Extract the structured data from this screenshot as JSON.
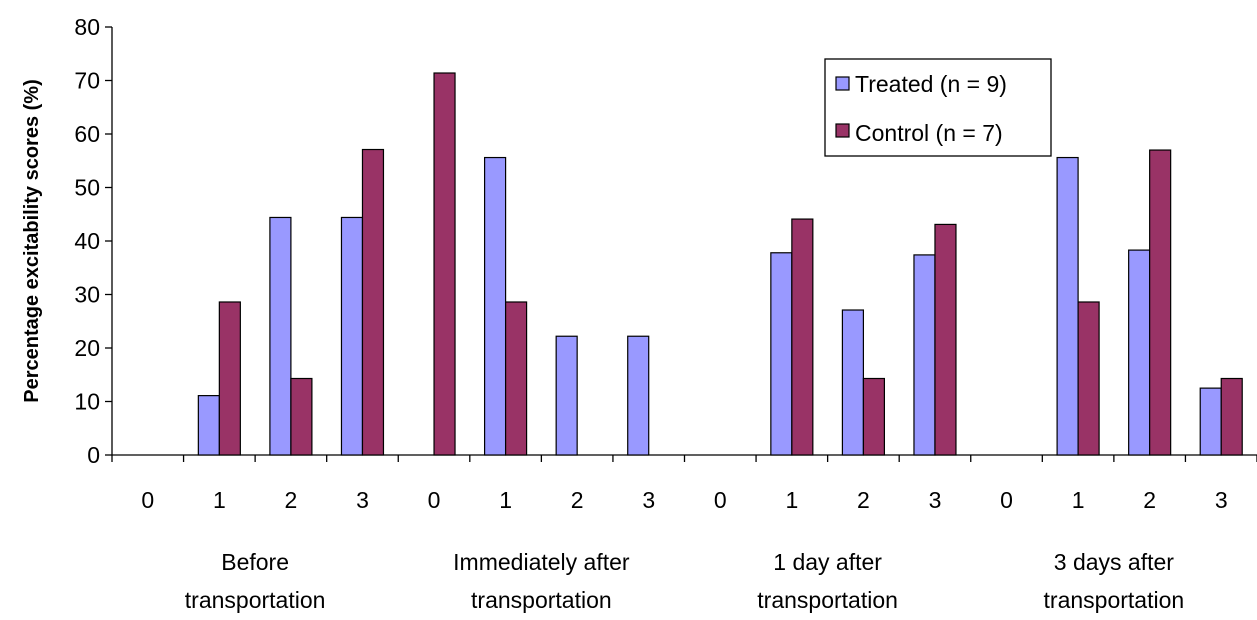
{
  "chart_data": {
    "type": "bar",
    "ylabel": "Percentage excitability scores (%)",
    "xlabel": "",
    "ylim": [
      0,
      80
    ],
    "yticks": [
      0,
      10,
      20,
      30,
      40,
      50,
      60,
      70,
      80
    ],
    "grid": false,
    "legend_position": "top-right",
    "categories": [
      "0",
      "1",
      "2",
      "3",
      "0",
      "1",
      "2",
      "3",
      "0",
      "1",
      "2",
      "3",
      "0",
      "1",
      "2",
      "3"
    ],
    "groups": [
      {
        "label_lines": [
          "Before",
          "transportation"
        ],
        "start": 0,
        "count": 4
      },
      {
        "label_lines": [
          "Immediately after",
          "transportation"
        ],
        "start": 4,
        "count": 4
      },
      {
        "label_lines": [
          "1 day after",
          "transportation"
        ],
        "start": 8,
        "count": 4
      },
      {
        "label_lines": [
          "3 days after",
          "transportation"
        ],
        "start": 12,
        "count": 4
      }
    ],
    "series": [
      {
        "name": "Treated (n = 9)",
        "color": "#9999ff",
        "values": [
          0,
          11.1,
          44.4,
          44.4,
          0,
          55.6,
          22.2,
          22.2,
          0,
          37.8,
          27.1,
          37.4,
          0,
          55.6,
          38.3,
          12.5
        ]
      },
      {
        "name": "Control (n = 7)",
        "color": "#993366",
        "values": [
          0,
          28.6,
          14.3,
          57.1,
          71.4,
          28.6,
          0,
          0,
          0,
          44.1,
          14.3,
          43.1,
          0,
          28.6,
          57.0,
          14.3
        ]
      }
    ]
  }
}
